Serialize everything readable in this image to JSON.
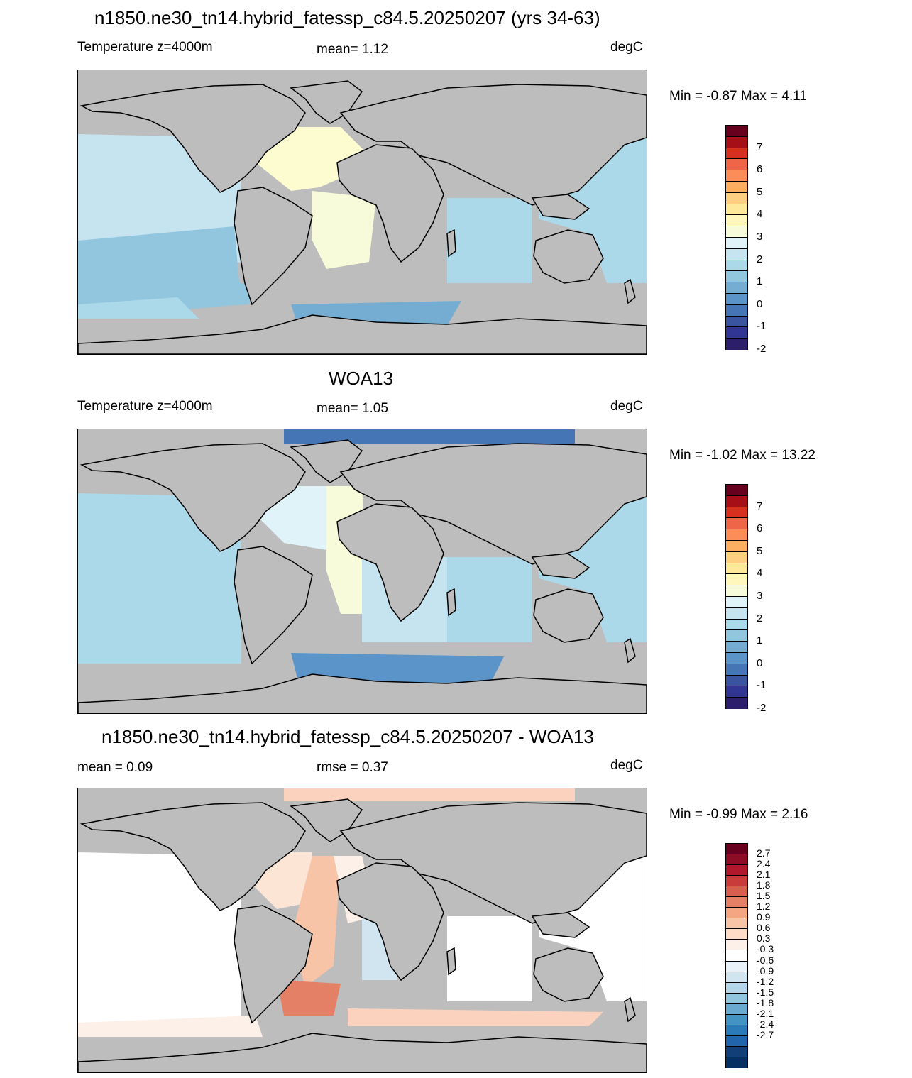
{
  "panels": [
    {
      "title": "n1850.ne30_tn14.hybrid_fatessp_c84.5.20250207 (yrs 34-63)",
      "left_label": "Temperature z=4000m",
      "center_label": "mean=   1.12",
      "units": "degC",
      "minmax": "Min =  -0.87 Max =   4.11",
      "colorbar": {
        "labels": [
          "7",
          "6",
          "5",
          "4",
          "3",
          "2",
          "1",
          "0",
          "-1",
          "-2"
        ],
        "colors": [
          "#67001f",
          "#a50f15",
          "#d7301f",
          "#ef6548",
          "#fc8d59",
          "#fdae61",
          "#fdd081",
          "#fee99a",
          "#fff7bc",
          "#f7fbd9",
          "#e0f3f8",
          "#c6e4f0",
          "#abd9e9",
          "#92c5de",
          "#74add1",
          "#5a94c8",
          "#4575b4",
          "#3a54a0",
          "#313695",
          "#2d1e6b"
        ]
      },
      "variant": "model"
    },
    {
      "title": "WOA13",
      "left_label": "Temperature z=4000m",
      "center_label": "mean=   1.05",
      "units": "degC",
      "minmax": "Min =  -1.02 Max =  13.22",
      "colorbar": {
        "labels": [
          "7",
          "6",
          "5",
          "4",
          "3",
          "2",
          "1",
          "0",
          "-1",
          "-2"
        ],
        "colors": [
          "#67001f",
          "#a50f15",
          "#d7301f",
          "#ef6548",
          "#fc8d59",
          "#fdae61",
          "#fdd081",
          "#fee99a",
          "#fff7bc",
          "#f7fbd9",
          "#e0f3f8",
          "#c6e4f0",
          "#abd9e9",
          "#92c5de",
          "#74add1",
          "#5a94c8",
          "#4575b4",
          "#3a54a0",
          "#313695",
          "#2d1e6b"
        ]
      },
      "variant": "obs"
    },
    {
      "title": "n1850.ne30_tn14.hybrid_fatessp_c84.5.20250207 - WOA13",
      "left_label": "mean =   0.09",
      "center_label": "rmse =   0.37",
      "units": "degC",
      "minmax": "Min =  -0.99 Max =   2.16",
      "colorbar": {
        "labels": [
          "2.7",
          "2.4",
          "2.1",
          "1.8",
          "1.5",
          "1.2",
          "0.9",
          "0.6",
          "0.3",
          "-0.3",
          "-0.6",
          "-0.9",
          "-1.2",
          "-1.5",
          "-1.8",
          "-2.1",
          "-2.4",
          "-2.7"
        ],
        "colors": [
          "#67001f",
          "#8e0c25",
          "#b2182b",
          "#c93a3a",
          "#d6604d",
          "#e48066",
          "#f4a582",
          "#f7c4a8",
          "#fddbc7",
          "#fdf0e8",
          "#ffffff",
          "#e8f2f8",
          "#d1e5f0",
          "#b5d6e9",
          "#92c5de",
          "#6aaad0",
          "#4393c3",
          "#2b7bb8",
          "#2166ac",
          "#123f78",
          "#053061"
        ]
      },
      "variant": "diff"
    }
  ]
}
